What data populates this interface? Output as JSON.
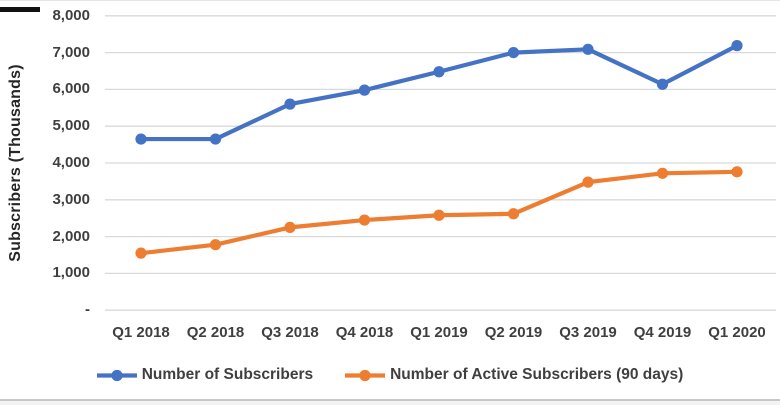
{
  "chart_data": {
    "type": "line",
    "title": "",
    "xlabel": "",
    "ylabel": "Subscribers (Thousands)",
    "categories": [
      "Q1 2018",
      "Q2 2018",
      "Q3 2018",
      "Q4 2018",
      "Q1 2019",
      "Q2 2019",
      "Q3 2019",
      "Q4 2019",
      "Q1 2020"
    ],
    "series": [
      {
        "name": "Number of Subscribers",
        "color": "#4472C4",
        "values": [
          4650,
          4650,
          5600,
          5980,
          6480,
          7000,
          7090,
          6140,
          7190
        ]
      },
      {
        "name": "Number of Active Subscribers (90 days)",
        "color": "#ED7D31",
        "values": [
          1550,
          1780,
          2250,
          2450,
          2580,
          2620,
          3480,
          3720,
          3760
        ]
      }
    ],
    "ylim": [
      0,
      8000
    ],
    "ytick_step": 1000,
    "yticks": [
      {
        "value": 0,
        "label": "-"
      },
      {
        "value": 1000,
        "label": "1,000"
      },
      {
        "value": 2000,
        "label": "2,000"
      },
      {
        "value": 3000,
        "label": "3,000"
      },
      {
        "value": 4000,
        "label": "4,000"
      },
      {
        "value": 5000,
        "label": "5,000"
      },
      {
        "value": 6000,
        "label": "6,000"
      },
      {
        "value": 7000,
        "label": "7,000"
      },
      {
        "value": 8000,
        "label": "8,000"
      }
    ],
    "grid": true,
    "gridline_color": "#D9D9D9",
    "text_color": "#3F3F3F",
    "legend_position": "bottom"
  }
}
